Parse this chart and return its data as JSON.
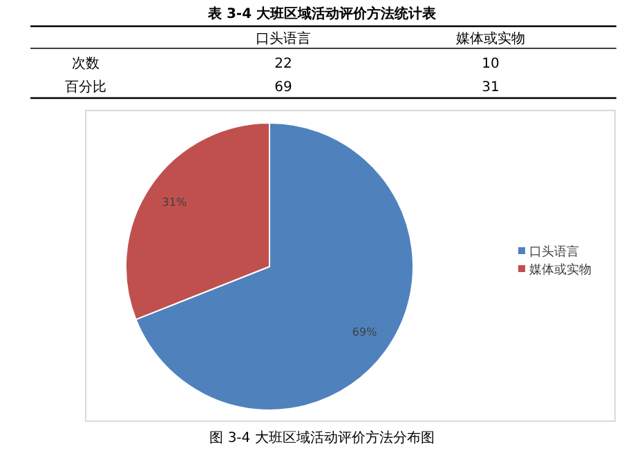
{
  "chart_data": [
    {
      "type": "other",
      "title": "表 3-4 大班区域活动评价方法统计表",
      "categories": [
        "口头语言",
        "媒体或实物"
      ],
      "y_categories": [
        "次数",
        "百分比"
      ],
      "annotations": [
        "22",
        "10",
        "69",
        "31"
      ]
    },
    {
      "type": "pie",
      "categories": [
        "口头语言",
        "媒体或实物"
      ],
      "values": [
        69,
        31
      ],
      "colors": [
        "#4f81bd",
        "#c0504d"
      ],
      "value_labels": [
        "69%",
        "31%"
      ],
      "legend": "right",
      "annotations": [
        "图 3-4 大班区域活动评价方法分布图"
      ]
    }
  ]
}
